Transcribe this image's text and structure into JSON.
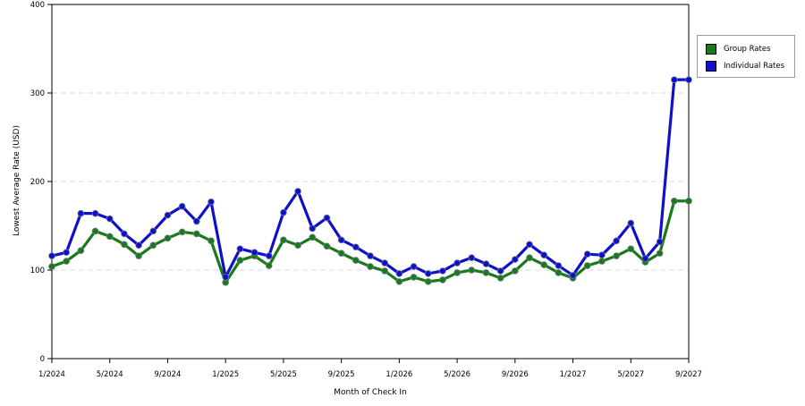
{
  "chart_data": {
    "type": "line",
    "title": "",
    "xlabel": "Month of Check In",
    "ylabel": "Lowest Average Rate (USD)",
    "ylim": [
      0,
      400
    ],
    "yticks": [
      "0",
      "100",
      "200",
      "300",
      "400"
    ],
    "x_tick_labels": [
      "1/2024",
      "5/2024",
      "9/2024",
      "1/2025",
      "5/2025",
      "9/2025",
      "1/2026",
      "5/2026",
      "9/2026",
      "1/2027",
      "5/2027",
      "9/2027"
    ],
    "x": [
      "1/2024",
      "2/2024",
      "3/2024",
      "4/2024",
      "5/2024",
      "6/2024",
      "7/2024",
      "8/2024",
      "9/2024",
      "10/2024",
      "11/2024",
      "12/2024",
      "1/2025",
      "2/2025",
      "3/2025",
      "4/2025",
      "5/2025",
      "6/2025",
      "7/2025",
      "8/2025",
      "9/2025",
      "10/2025",
      "11/2025",
      "12/2025",
      "1/2026",
      "2/2026",
      "3/2026",
      "4/2026",
      "5/2026",
      "6/2026",
      "7/2026",
      "8/2026",
      "9/2026",
      "10/2026",
      "11/2026",
      "12/2026",
      "1/2027",
      "2/2027",
      "3/2027",
      "4/2027",
      "5/2027",
      "6/2027",
      "7/2027",
      "8/2027",
      "9/2027"
    ],
    "grid": "horizontal dashed",
    "legend_position": "right",
    "series": [
      {
        "name": "Group Rates",
        "color": "#1a7a1a",
        "values": [
          104,
          110,
          122,
          144,
          138,
          129,
          116,
          128,
          136,
          143,
          141,
          133,
          86,
          111,
          116,
          105,
          134,
          128,
          137,
          127,
          119,
          111,
          104,
          99,
          87,
          92,
          87,
          89,
          97,
          100,
          97,
          91,
          99,
          114,
          106,
          97,
          91,
          105,
          110,
          116,
          124,
          109,
          119,
          178,
          178
        ]
      },
      {
        "name": "Individual Rates",
        "color": "#1010c8",
        "values": [
          116,
          120,
          164,
          164,
          158,
          141,
          128,
          144,
          162,
          172,
          155,
          177,
          92,
          124,
          120,
          116,
          165,
          189,
          147,
          159,
          134,
          126,
          116,
          108,
          96,
          104,
          96,
          99,
          108,
          114,
          107,
          99,
          112,
          129,
          117,
          105,
          94,
          118,
          117,
          133,
          153,
          113,
          132,
          315,
          315
        ]
      }
    ]
  }
}
